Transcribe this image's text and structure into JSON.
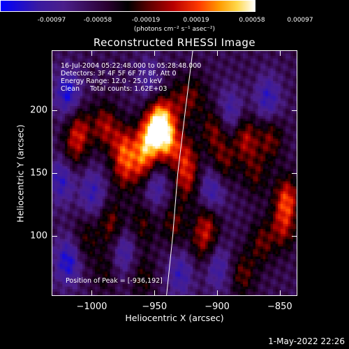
{
  "colorbar": {
    "ticks": [
      "-0.00097",
      "-0.00058",
      "-0.00019",
      "0.00019",
      "0.00058",
      "0.00097"
    ],
    "unit": "(photons cm⁻² s⁻¹ asec⁻²)",
    "range": [
      -0.00097,
      0.00097
    ]
  },
  "chart_data": {
    "type": "heatmap",
    "title": "Reconstructed RHESSI Image",
    "xlabel": "Heliocentric X (arcsec)",
    "ylabel": "Heliocentric Y (arcsec)",
    "xlim": [
      -1032,
      -836
    ],
    "ylim": [
      52,
      248
    ],
    "xticks": [
      -1000,
      -950,
      -900,
      -850
    ],
    "yticks": [
      100,
      150,
      200
    ],
    "xtick_labels": [
      "−1000",
      "−950",
      "−900",
      "−850"
    ],
    "ytick_labels": [
      "100",
      "150",
      "200"
    ],
    "value_range": [
      -0.00097,
      0.00097
    ],
    "peak": [
      -936,
      192
    ],
    "bright_regions": [
      {
        "x": -946,
        "y": 193,
        "value": 0.00097
      },
      {
        "x": -955,
        "y": 178,
        "value": 0.00085
      },
      {
        "x": -940,
        "y": 176,
        "value": 0.0008
      },
      {
        "x": -990,
        "y": 188,
        "value": 0.00055
      },
      {
        "x": -1010,
        "y": 185,
        "value": 0.0005
      },
      {
        "x": -975,
        "y": 172,
        "value": 0.0006
      },
      {
        "x": -960,
        "y": 158,
        "value": 0.0006
      },
      {
        "x": -925,
        "y": 165,
        "value": 0.00045
      },
      {
        "x": -925,
        "y": 145,
        "value": 0.0005
      },
      {
        "x": -903,
        "y": 185,
        "value": 0.00045
      },
      {
        "x": -895,
        "y": 160,
        "value": 0.0004
      },
      {
        "x": -878,
        "y": 178,
        "value": 0.00055
      },
      {
        "x": -858,
        "y": 178,
        "value": 0.00045
      },
      {
        "x": -870,
        "y": 150,
        "value": 0.00035
      },
      {
        "x": -845,
        "y": 130,
        "value": 0.0007
      },
      {
        "x": -848,
        "y": 107,
        "value": 0.0005
      },
      {
        "x": -865,
        "y": 95,
        "value": 0.0004
      },
      {
        "x": -975,
        "y": 152,
        "value": 0.00045
      },
      {
        "x": -985,
        "y": 110,
        "value": 0.00045
      },
      {
        "x": -1015,
        "y": 170,
        "value": 0.00035
      },
      {
        "x": -960,
        "y": 110,
        "value": 0.00035
      },
      {
        "x": -935,
        "y": 110,
        "value": 0.0004
      },
      {
        "x": -908,
        "y": 112,
        "value": 0.00045
      },
      {
        "x": -1005,
        "y": 98,
        "value": 0.0003
      },
      {
        "x": -990,
        "y": 72,
        "value": 0.00025
      },
      {
        "x": -880,
        "y": 70,
        "value": 0.0004
      },
      {
        "x": -960,
        "y": 68,
        "value": 0.0003
      },
      {
        "x": -912,
        "y": 95,
        "value": 0.0004
      },
      {
        "x": -918,
        "y": 212,
        "value": 0.0003
      },
      {
        "x": -930,
        "y": 208,
        "value": 0.00035
      }
    ],
    "dark_regions": [
      {
        "x": -1020,
        "y": 215,
        "value": -0.0006
      },
      {
        "x": -1025,
        "y": 145,
        "value": -0.0005
      },
      {
        "x": -1000,
        "y": 135,
        "value": -0.00045
      },
      {
        "x": -950,
        "y": 140,
        "value": -0.0004
      },
      {
        "x": -905,
        "y": 135,
        "value": -0.0005
      },
      {
        "x": -890,
        "y": 200,
        "value": -0.0004
      },
      {
        "x": -1020,
        "y": 80,
        "value": -0.0006
      },
      {
        "x": -975,
        "y": 88,
        "value": -0.0004
      },
      {
        "x": -930,
        "y": 70,
        "value": -0.00045
      },
      {
        "x": -900,
        "y": 75,
        "value": -0.0004
      },
      {
        "x": -860,
        "y": 210,
        "value": -0.0005
      },
      {
        "x": -955,
        "y": 225,
        "value": -0.0003
      }
    ],
    "limb": [
      [
        -941,
        52
      ],
      [
        -936,
        100
      ],
      [
        -932,
        150
      ],
      [
        -926,
        200
      ],
      [
        -920,
        248
      ]
    ],
    "limb_color": "#ffffff"
  },
  "info": {
    "time": "16-Jul-2004 05:22:48.000 to 05:28:48.000",
    "detectors": "Detectors: 3F 4F 5F 6F 7F 8F, Att 0",
    "energy": "Energy Range: 12.0 - 25.0 keV",
    "clean": "Clean     Total counts: 1.62E+03",
    "peak": "Position of Peak = [-936,192]"
  },
  "footer": {
    "stamp": "1-May-2022 22:26"
  }
}
